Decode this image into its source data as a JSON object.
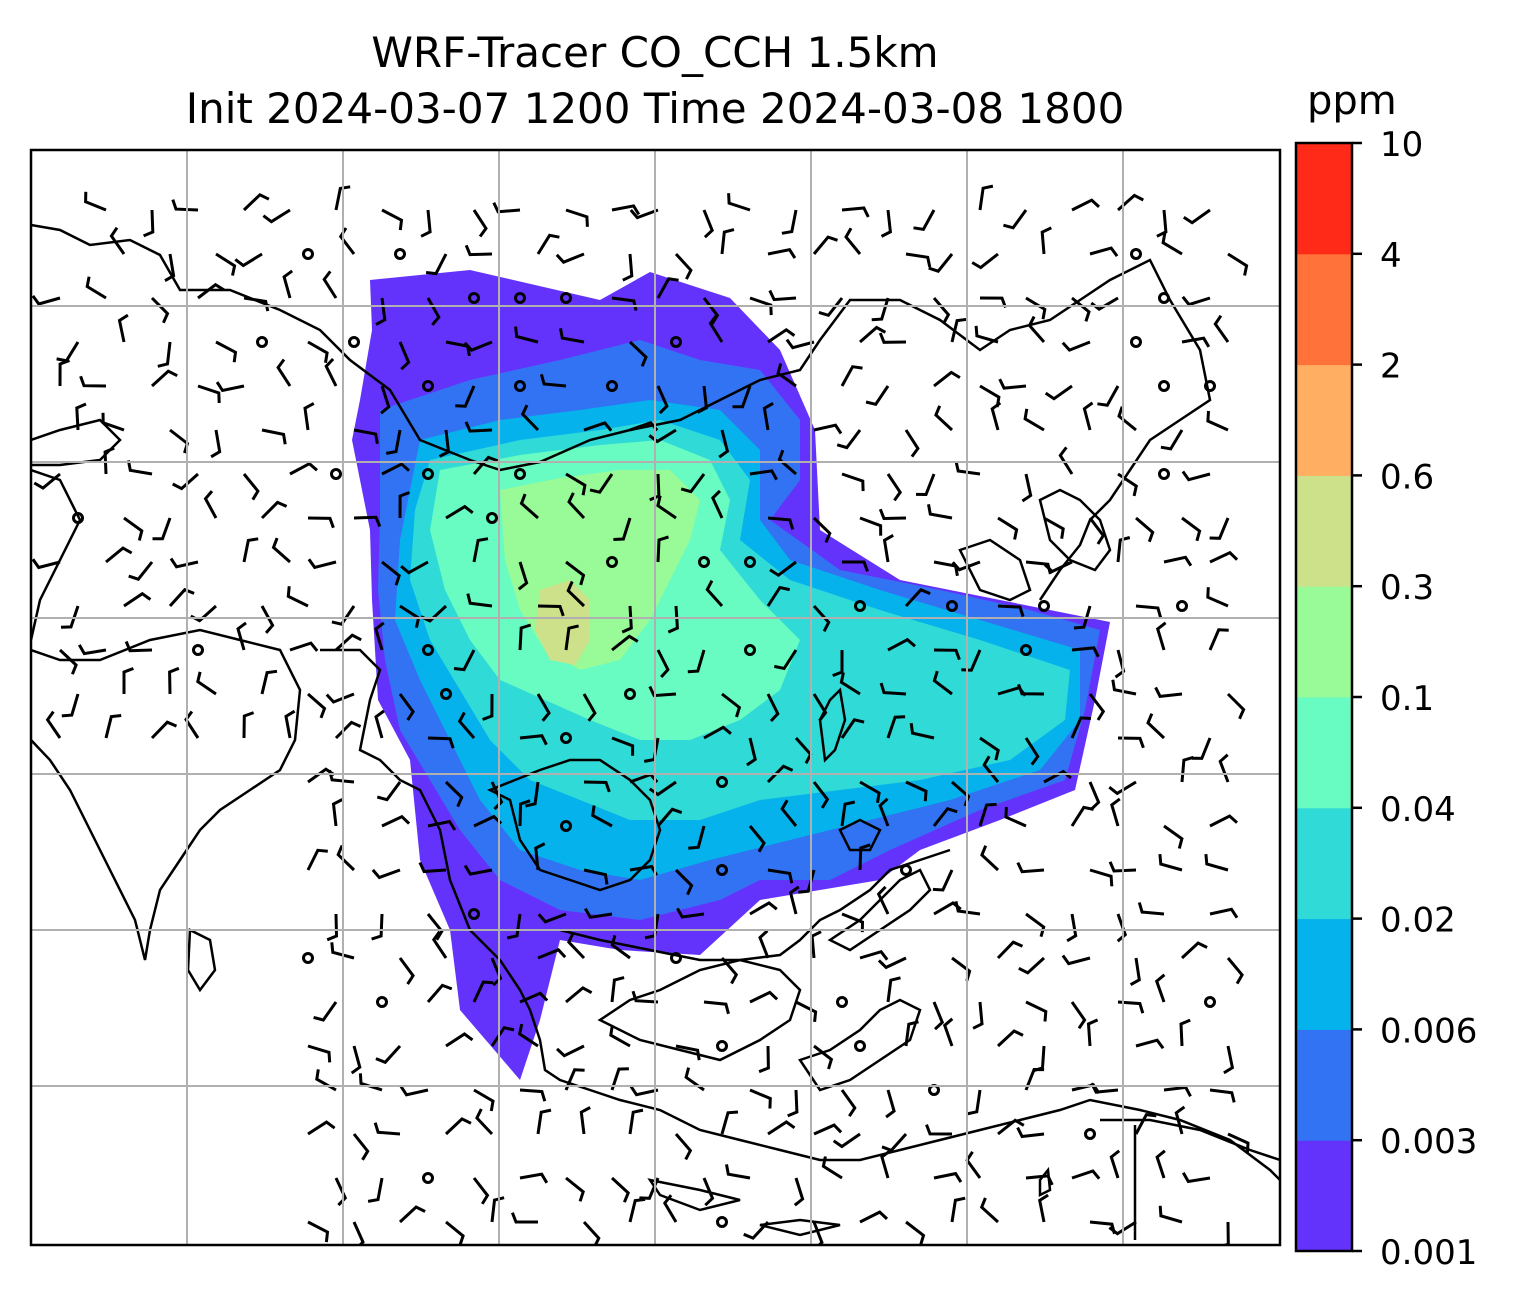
{
  "chart_data": {
    "type": "heatmap",
    "title": "WRF-Tracer CO_CCH 1.5km",
    "subtitle": "Init 2024-03-07 1200 Time 2024-03-08 1800",
    "colorbar": {
      "label": "ppm",
      "levels": [
        "0.001",
        "0.003",
        "0.006",
        "0.02",
        "0.04",
        "0.1",
        "0.3",
        "0.6",
        "2",
        "4",
        "10"
      ],
      "colors": [
        "#6433fb",
        "#3273f3",
        "#05b2ec",
        "#30dad6",
        "#68fbc2",
        "#98fb98",
        "#cce18a",
        "#ffae62",
        "#ff7239",
        "#ff2a17"
      ]
    },
    "grid": true,
    "overlays": [
      "coastlines",
      "wind barbs"
    ]
  }
}
